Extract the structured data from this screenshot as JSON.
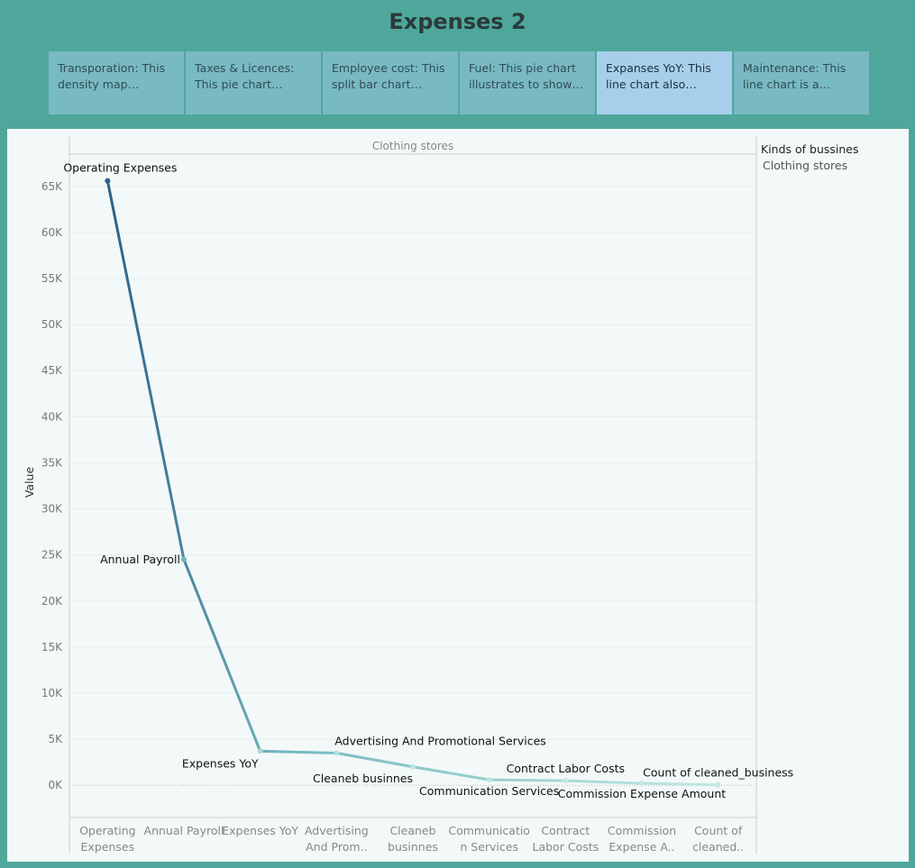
{
  "page_title": "Expenses 2",
  "tabs": [
    {
      "label": "Transporation: This density map distribut..",
      "active": false
    },
    {
      "label": "Taxes & Licences:  This pie chart  illustrates t..",
      "active": false
    },
    {
      "label": "Employee cost: This split bar chart provid..",
      "active": false
    },
    {
      "label": "Fuel: This pie chart illustrates to show a ..",
      "active": false
    },
    {
      "label": "Expanses YoY: This line chart also referred to ..",
      "active": true
    },
    {
      "label": "Maintenance: This line chart  is a graphical r..",
      "active": false
    }
  ],
  "legend": {
    "title": "Kinds of bussines",
    "item": "Clothing stores"
  },
  "colors": {
    "line_start": "#2d6088",
    "line_end": "#c4e9e3",
    "background": "#4fa79b",
    "panel": "#f2f9f8"
  },
  "chart_data": {
    "type": "line",
    "panel_header": "Clothing stores",
    "ylabel": "Value",
    "ylim": [
      -3500,
      68500
    ],
    "yticks": [
      0,
      5000,
      10000,
      15000,
      20000,
      25000,
      30000,
      35000,
      40000,
      45000,
      50000,
      55000,
      60000,
      65000
    ],
    "ytick_labels": [
      "0K",
      "5K",
      "10K",
      "15K",
      "20K",
      "25K",
      "30K",
      "35K",
      "40K",
      "45K",
      "50K",
      "55K",
      "60K",
      "65K"
    ],
    "categories": [
      "Operating Expenses",
      "Annual Payroll",
      "Expenses YoY",
      "Advertising And Promotional Services",
      "Cleaneb businnes",
      "Communication Services",
      "Contract Labor Costs",
      "Commission Expense Amount",
      "Count of cleaned_business"
    ],
    "category_tick_labels": [
      [
        "Operating",
        "Expenses"
      ],
      [
        "Annual Payroll"
      ],
      [
        "Expenses YoY"
      ],
      [
        "Advertising",
        "And Prom.."
      ],
      [
        "Cleaneb",
        "businnes"
      ],
      [
        "Communicatio",
        "n Services"
      ],
      [
        "Contract",
        "Labor Costs"
      ],
      [
        "Commission",
        "Expense A.."
      ],
      [
        "Count of",
        "cleaned.."
      ]
    ],
    "values": [
      65600,
      24500,
      3700,
      3500,
      2000,
      600,
      500,
      200,
      50
    ],
    "point_labels": [
      "Operating Expenses",
      "Annual Payroll",
      "Expenses YoY",
      "Advertising And Promotional Services",
      "Cleaneb businnes",
      "Communication Services",
      "Contract Labor Costs",
      "Commission Expense Amount",
      "Count of cleaned_business"
    ],
    "grid": true
  }
}
